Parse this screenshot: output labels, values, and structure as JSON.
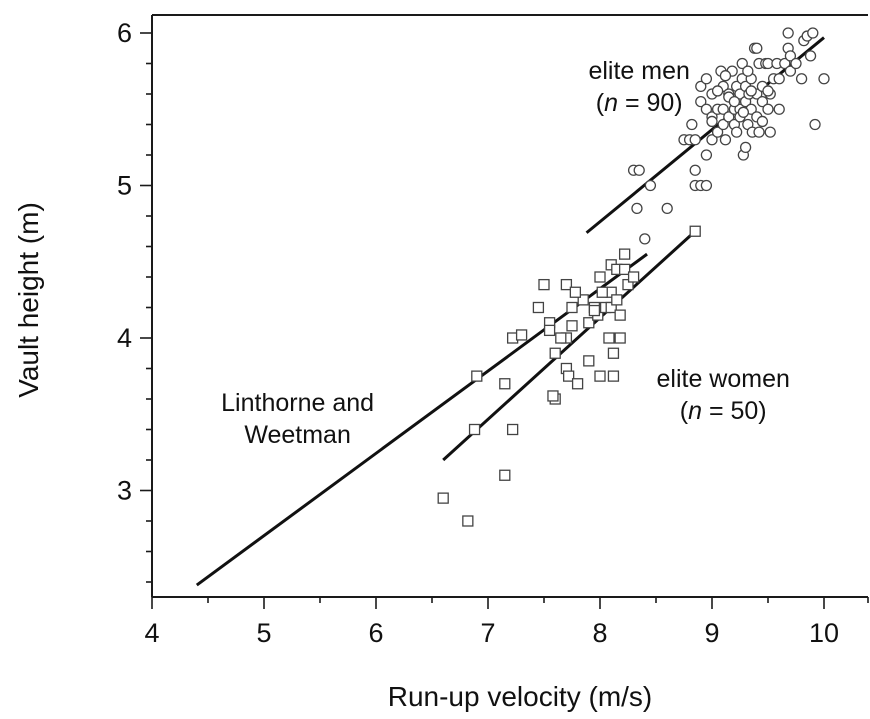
{
  "chart_data": {
    "type": "scatter",
    "title": "",
    "xlabel": "Run-up velocity (m/s)",
    "ylabel": "Vault height (m)",
    "xlim": [
      4,
      10.4
    ],
    "ylim": [
      2.3,
      6.1
    ],
    "x_ticks": [
      4,
      5,
      6,
      7,
      8,
      9,
      10
    ],
    "y_ticks": [
      3,
      4,
      5,
      6
    ],
    "grid": false,
    "annotations": [
      {
        "id": "men",
        "lines": [
          {
            "text": "elite men"
          },
          {
            "italic": "n",
            "rest": " = 90)",
            "prefix": "("
          }
        ],
        "x": 8.35,
        "y": 5.7
      },
      {
        "id": "women",
        "lines": [
          {
            "text": "elite women"
          },
          {
            "italic": "n",
            "rest": " = 50)",
            "prefix": "("
          }
        ],
        "x": 9.1,
        "y": 3.68
      },
      {
        "id": "lw",
        "lines": [
          {
            "text": "Linthorne and"
          },
          {
            "text": "Weetman"
          }
        ],
        "x": 5.3,
        "y": 3.52
      }
    ],
    "lines": [
      {
        "name": "Linthorne and Weetman",
        "x": [
          4.4,
          8.42
        ],
        "y": [
          2.38,
          4.55
        ]
      },
      {
        "name": "elite women",
        "x": [
          6.6,
          8.85
        ],
        "y": [
          3.2,
          4.7
        ]
      },
      {
        "name": "elite men",
        "x": [
          7.88,
          10.0
        ],
        "y": [
          4.69,
          5.97
        ]
      }
    ],
    "series": [
      {
        "name": "elite men",
        "marker": "circle",
        "points": [
          [
            8.3,
            5.1
          ],
          [
            8.35,
            5.1
          ],
          [
            8.45,
            5.0
          ],
          [
            8.33,
            4.85
          ],
          [
            8.4,
            4.65
          ],
          [
            8.6,
            4.85
          ],
          [
            8.75,
            5.3
          ],
          [
            8.8,
            5.3
          ],
          [
            8.85,
            5.3
          ],
          [
            8.82,
            5.4
          ],
          [
            8.85,
            5.1
          ],
          [
            8.85,
            5.0
          ],
          [
            8.9,
            5.0
          ],
          [
            8.95,
            5.0
          ],
          [
            8.95,
            5.2
          ],
          [
            8.9,
            5.55
          ],
          [
            8.9,
            5.65
          ],
          [
            8.95,
            5.5
          ],
          [
            8.95,
            5.7
          ],
          [
            9.0,
            5.45
          ],
          [
            9.0,
            5.6
          ],
          [
            9.0,
            5.3
          ],
          [
            9.05,
            5.35
          ],
          [
            9.05,
            5.5
          ],
          [
            9.08,
            5.75
          ],
          [
            9.1,
            5.5
          ],
          [
            9.1,
            5.65
          ],
          [
            9.1,
            5.4
          ],
          [
            9.12,
            5.3
          ],
          [
            9.15,
            5.45
          ],
          [
            9.15,
            5.6
          ],
          [
            9.18,
            5.75
          ],
          [
            9.2,
            5.5
          ],
          [
            9.2,
            5.4
          ],
          [
            9.22,
            5.65
          ],
          [
            9.22,
            5.35
          ],
          [
            9.25,
            5.6
          ],
          [
            9.25,
            5.5
          ],
          [
            9.25,
            5.45
          ],
          [
            9.27,
            5.8
          ],
          [
            9.27,
            5.7
          ],
          [
            9.28,
            5.2
          ],
          [
            9.3,
            5.25
          ],
          [
            9.3,
            5.55
          ],
          [
            9.3,
            5.65
          ],
          [
            9.32,
            5.4
          ],
          [
            9.33,
            5.6
          ],
          [
            9.35,
            5.7
          ],
          [
            9.35,
            5.5
          ],
          [
            9.36,
            5.35
          ],
          [
            9.38,
            5.9
          ],
          [
            9.4,
            5.9
          ],
          [
            9.4,
            5.6
          ],
          [
            9.4,
            5.45
          ],
          [
            9.42,
            5.8
          ],
          [
            9.42,
            5.35
          ],
          [
            9.45,
            5.65
          ],
          [
            9.45,
            5.55
          ],
          [
            9.48,
            5.8
          ],
          [
            9.5,
            5.8
          ],
          [
            9.5,
            5.5
          ],
          [
            9.52,
            5.6
          ],
          [
            9.52,
            5.35
          ],
          [
            9.55,
            5.7
          ],
          [
            9.58,
            5.8
          ],
          [
            9.6,
            5.7
          ],
          [
            9.6,
            5.5
          ],
          [
            9.65,
            5.8
          ],
          [
            9.68,
            5.9
          ],
          [
            9.7,
            5.75
          ],
          [
            9.7,
            5.85
          ],
          [
            9.68,
            6.0
          ],
          [
            9.75,
            5.8
          ],
          [
            9.8,
            5.7
          ],
          [
            9.82,
            5.95
          ],
          [
            9.85,
            5.98
          ],
          [
            9.88,
            5.85
          ],
          [
            9.9,
            6.0
          ],
          [
            9.92,
            5.4
          ],
          [
            10.0,
            5.7
          ],
          [
            9.0,
            5.42
          ],
          [
            9.15,
            5.58
          ],
          [
            9.35,
            5.62
          ],
          [
            9.28,
            5.48
          ],
          [
            9.12,
            5.72
          ],
          [
            9.32,
            5.75
          ],
          [
            9.5,
            5.62
          ],
          [
            9.2,
            5.55
          ],
          [
            9.05,
            5.62
          ],
          [
            9.45,
            5.42
          ]
        ]
      },
      {
        "name": "elite women",
        "marker": "square",
        "points": [
          [
            6.6,
            2.95
          ],
          [
            6.82,
            2.8
          ],
          [
            6.9,
            3.75
          ],
          [
            6.88,
            3.4
          ],
          [
            7.15,
            3.1
          ],
          [
            7.15,
            3.7
          ],
          [
            7.22,
            3.4
          ],
          [
            7.22,
            4.0
          ],
          [
            7.3,
            4.02
          ],
          [
            7.45,
            4.2
          ],
          [
            7.5,
            4.35
          ],
          [
            7.55,
            4.1
          ],
          [
            7.55,
            4.05
          ],
          [
            7.6,
            3.9
          ],
          [
            7.6,
            3.6
          ],
          [
            7.7,
            4.35
          ],
          [
            7.7,
            4.0
          ],
          [
            7.7,
            3.8
          ],
          [
            7.72,
            3.75
          ],
          [
            7.75,
            4.2
          ],
          [
            7.75,
            4.08
          ],
          [
            7.8,
            3.7
          ],
          [
            7.85,
            4.25
          ],
          [
            7.9,
            4.1
          ],
          [
            7.9,
            3.85
          ],
          [
            7.95,
            4.2
          ],
          [
            7.98,
            4.15
          ],
          [
            8.0,
            4.4
          ],
          [
            8.0,
            3.75
          ],
          [
            8.05,
            4.2
          ],
          [
            8.08,
            4.0
          ],
          [
            8.1,
            4.48
          ],
          [
            8.1,
            4.3
          ],
          [
            8.1,
            4.2
          ],
          [
            8.12,
            3.9
          ],
          [
            8.12,
            3.75
          ],
          [
            8.15,
            4.45
          ],
          [
            8.15,
            4.25
          ],
          [
            8.18,
            4.0
          ],
          [
            8.22,
            4.55
          ],
          [
            8.22,
            4.45
          ],
          [
            8.25,
            4.35
          ],
          [
            8.3,
            4.4
          ],
          [
            8.85,
            4.7
          ],
          [
            7.65,
            4.0
          ],
          [
            7.95,
            4.18
          ],
          [
            7.58,
            3.62
          ],
          [
            8.02,
            4.3
          ],
          [
            7.78,
            4.3
          ],
          [
            8.18,
            4.15
          ]
        ]
      }
    ]
  }
}
